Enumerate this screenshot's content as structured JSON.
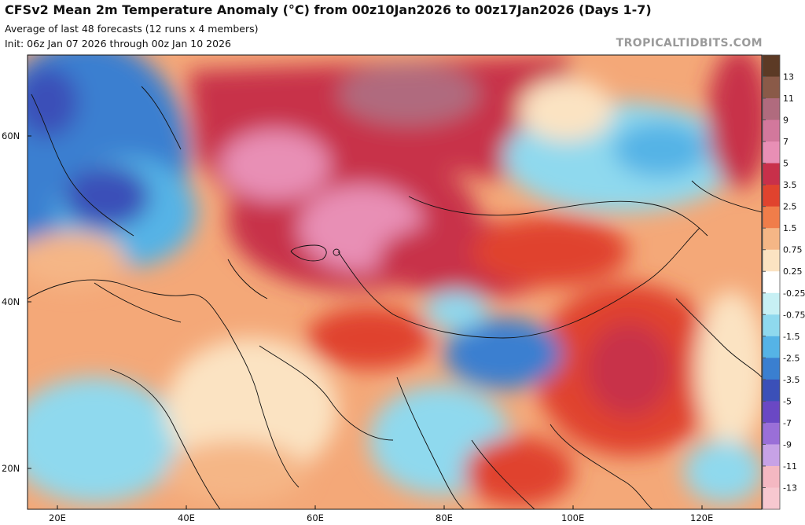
{
  "header": {
    "title": "CFSv2 Mean 2m Temperature Anomaly (°C) from 00z10Jan2026 to 00z17Jan2026 (Days 1-7)",
    "subtitle": "Average of last 48 forecasts (12 runs x 4 members)",
    "init": "Init: 06z Jan 07 2026 through 00z Jan 10 2026",
    "credit": "TROPICALTIDBITS.COM"
  },
  "map": {
    "lat_labels": [
      "60N",
      "40N",
      "20N"
    ],
    "lon_labels": [
      "20E",
      "40E",
      "60E",
      "80E",
      "100E",
      "120E"
    ]
  },
  "colorbar": {
    "labels": [
      "13",
      "11",
      "9",
      "7",
      "5",
      "3.5",
      "2.5",
      "1.5",
      "0.75",
      "0.25",
      "-0.25",
      "-0.75",
      "-1.5",
      "-2.5",
      "-3.5",
      "-5",
      "-7",
      "-9",
      "-11",
      "-13"
    ],
    "colors": [
      "#5c3a25",
      "#8a5a48",
      "#b06b7e",
      "#d2789c",
      "#e88fb5",
      "#c8304a",
      "#e0432e",
      "#f07d4a",
      "#f5b686",
      "#fbe3c2",
      "#ffffff",
      "#c7f0f4",
      "#8fd9ee",
      "#55b3e6",
      "#3a7fd0",
      "#3b50b8",
      "#6a48c4",
      "#9a6fd8",
      "#c7a2e6",
      "#f4b8c2",
      "#f7c8d0"
    ]
  }
}
